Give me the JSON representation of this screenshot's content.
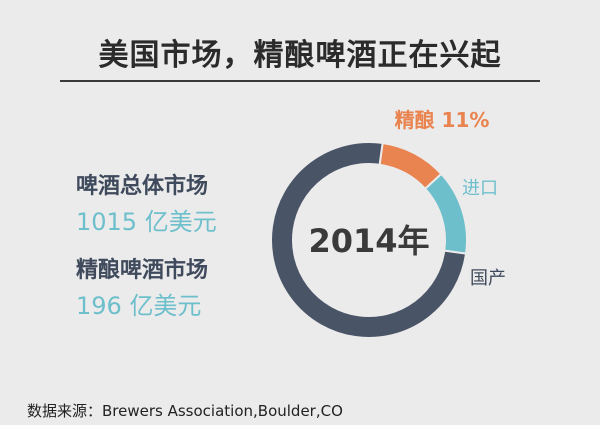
{
  "title": "美国市场，精酿啤酒正在兴起",
  "stats": [
    {
      "label": "啤酒总体市场",
      "value": "1015 亿美元"
    },
    {
      "label": "精酿啤酒市场",
      "value": "196 亿美元"
    }
  ],
  "source": "数据来源：Brewers Association,Boulder,CO",
  "chart_data": {
    "type": "pie",
    "donut": true,
    "center_label": "2014年",
    "slices": [
      {
        "name": "精酿",
        "value": 11,
        "display": "精酿 11%",
        "color": "#e9834f"
      },
      {
        "name": "进口",
        "value": 14,
        "display": "进口",
        "color": "#6dbfcc"
      },
      {
        "name": "国产",
        "value": 75,
        "display": "国产",
        "color": "#4a5467"
      }
    ]
  },
  "colors": {
    "background": "#ebebeb",
    "title": "#2b2b2b",
    "label_dark": "#3f4a5c",
    "value_teal": "#6dbfcc",
    "craft_orange": "#e9834f"
  }
}
